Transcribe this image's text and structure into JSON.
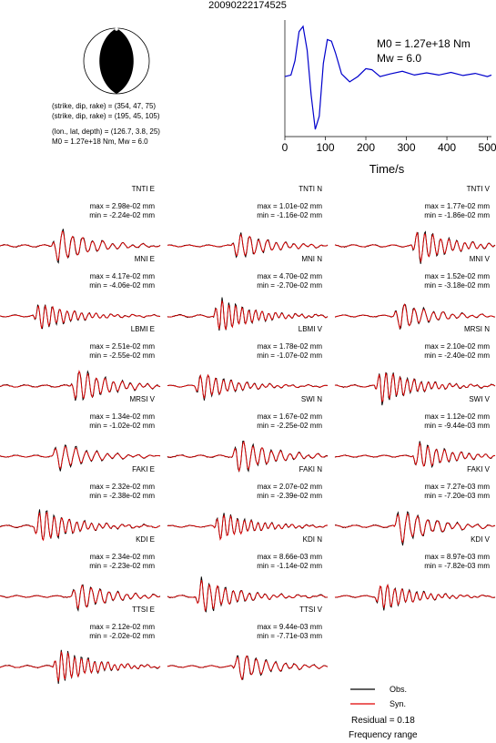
{
  "event_id": "20090222174525",
  "mechanism": {
    "plane1": "(strike, dip, rake) = (354, 47, 75)",
    "plane2": "(strike, dip, rake) = (195, 45, 105)",
    "location": "(lon., lat, depth) = (126.7, 3.8, 25)",
    "moment_line": "M0 = 1.27e+18 Nm, Mw = 6.0"
  },
  "stf": {
    "m0_label": "M0 = 1.27e+18 Nm",
    "mw_label": "Mw = 6.0",
    "xlabel": "Time/s",
    "xticks": [
      "0",
      "100",
      "200",
      "300",
      "400",
      "500"
    ]
  },
  "legend": {
    "obs": "Obs.",
    "syn": "Syn.",
    "residual": "Residual = 0.18",
    "freq": "Frequency range"
  },
  "colors": {
    "obs": "#000000",
    "syn": "#e00000",
    "stf": "#0000cc"
  },
  "chart_data": [
    {
      "type": "line",
      "title": "",
      "xlabel": "Time/s",
      "xlim": [
        0,
        510
      ],
      "series": [
        {
          "values": [
            [
              0,
              0.05
            ],
            [
              15,
              0.08
            ],
            [
              25,
              0.35
            ],
            [
              35,
              0.9
            ],
            [
              45,
              1.0
            ],
            [
              55,
              0.55
            ],
            [
              65,
              -0.3
            ],
            [
              75,
              -0.95
            ],
            [
              85,
              -0.7
            ],
            [
              95,
              0.3
            ],
            [
              105,
              0.75
            ],
            [
              115,
              0.72
            ],
            [
              125,
              0.5
            ],
            [
              140,
              0.1
            ],
            [
              160,
              -0.05
            ],
            [
              180,
              0.05
            ],
            [
              200,
              0.2
            ],
            [
              215,
              0.18
            ],
            [
              235,
              0.05
            ],
            [
              260,
              0.1
            ],
            [
              290,
              0.15
            ],
            [
              320,
              0.08
            ],
            [
              350,
              0.12
            ],
            [
              380,
              0.08
            ],
            [
              410,
              0.13
            ],
            [
              440,
              0.07
            ],
            [
              470,
              0.11
            ],
            [
              500,
              0.05
            ],
            [
              510,
              0.08
            ]
          ]
        }
      ]
    },
    {
      "type": "line",
      "panels": [
        {
          "station": "TNTI E",
          "max": "max = 2.98e-02 mm",
          "min": "min = -2.24e-02 mm"
        },
        {
          "station": "TNTI N",
          "max": "max = 1.01e-02 mm",
          "min": "min = -1.16e-02 mm"
        },
        {
          "station": "TNTI V",
          "max": "max = 1.77e-02 mm",
          "min": "min = -1.86e-02 mm"
        },
        {
          "station": "MNI E",
          "max": "max = 4.17e-02 mm",
          "min": "min = -4.06e-02 mm"
        },
        {
          "station": "MNI N",
          "max": "max = 4.70e-02 mm",
          "min": "min = -2.70e-02 mm"
        },
        {
          "station": "MNI V",
          "max": "max = 1.52e-02 mm",
          "min": "min = -3.18e-02 mm"
        },
        {
          "station": "LBMI E",
          "max": "max = 2.51e-02 mm",
          "min": "min = -2.55e-02 mm"
        },
        {
          "station": "LBMI V",
          "max": "max = 1.78e-02 mm",
          "min": "min = -1.07e-02 mm"
        },
        {
          "station": "MRSI N",
          "max": "max = 2.10e-02 mm",
          "min": "min = -2.40e-02 mm"
        },
        {
          "station": "MRSI V",
          "max": "max = 1.34e-02 mm",
          "min": "min = -1.02e-02 mm"
        },
        {
          "station": "SWI N",
          "max": "max = 1.67e-02 mm",
          "min": "min = -2.25e-02 mm"
        },
        {
          "station": "SWI V",
          "max": "max = 1.12e-02 mm",
          "min": "min = -9.44e-03 mm"
        },
        {
          "station": "FAKI E",
          "max": "max = 2.32e-02 mm",
          "min": "min = -2.38e-02 mm"
        },
        {
          "station": "FAKI N",
          "max": "max = 2.07e-02 mm",
          "min": "min = -2.39e-02 mm"
        },
        {
          "station": "FAKI V",
          "max": "max = 7.27e-03 mm",
          "min": "min = -7.20e-03 mm"
        },
        {
          "station": "KDI E",
          "max": "max = 2.34e-02 mm",
          "min": "min = -2.23e-02 mm"
        },
        {
          "station": "KDI N",
          "max": "max = 8.66e-03 mm",
          "min": "min = -1.14e-02 mm"
        },
        {
          "station": "KDI V",
          "max": "max = 8.97e-03 mm",
          "min": "min = -7.82e-03 mm"
        },
        {
          "station": "TTSI E",
          "max": "max = 2.12e-02 mm",
          "min": "min = -2.02e-02 mm"
        },
        {
          "station": "TTSI V",
          "max": "max = 9.44e-03 mm",
          "min": "min = -7.71e-03 mm"
        }
      ]
    }
  ]
}
